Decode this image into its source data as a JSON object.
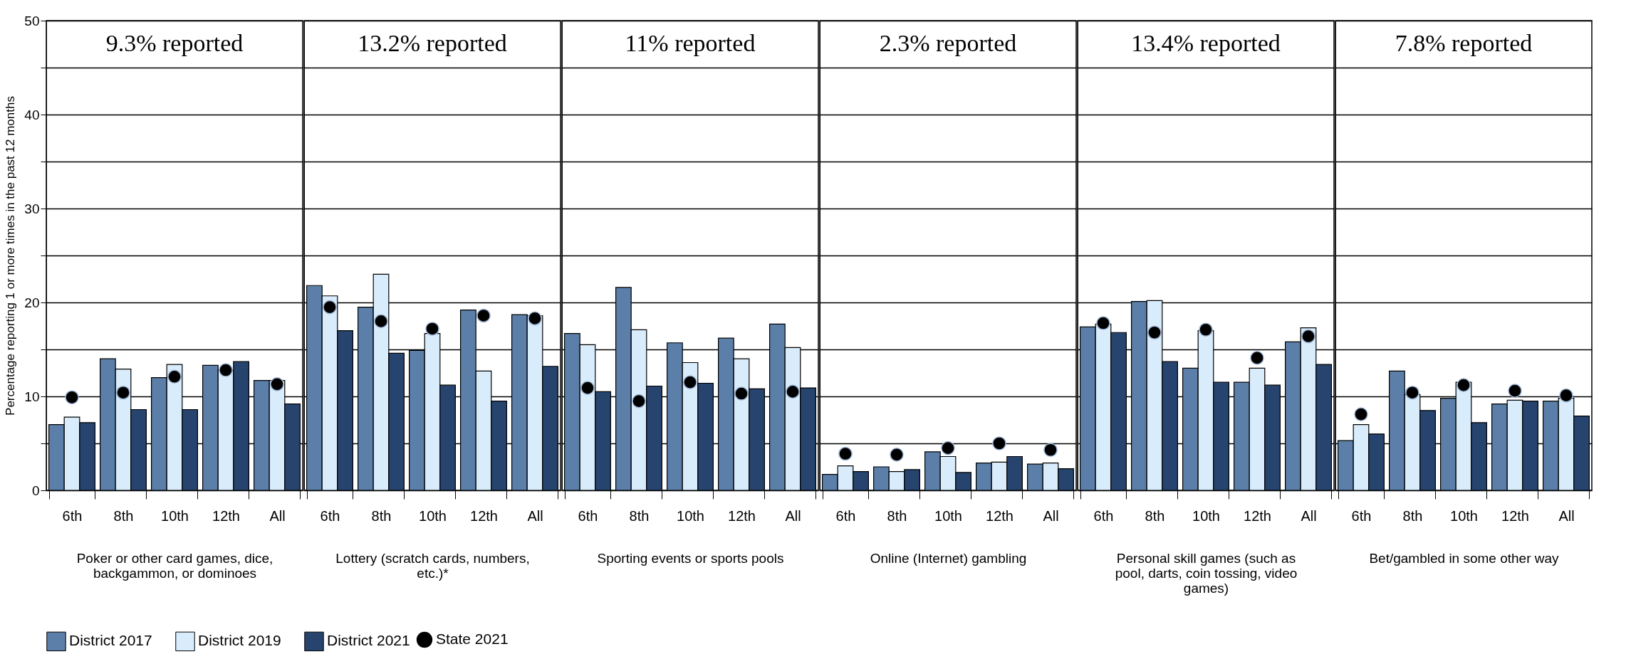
{
  "chart_data": [
    {
      "type": "bar",
      "title": "9.3% reported",
      "xlabel": "Poker or other card games, dice, backgammon, or dominoes",
      "ylabel": "Percentage reporting 1 or more times in the past 12 months",
      "categories": [
        "6th",
        "8th",
        "10th",
        "12th",
        "All"
      ],
      "series": [
        {
          "name": "District 2017",
          "color": "#5b7fa8",
          "values": [
            7.0,
            14.0,
            12.0,
            13.3,
            11.7
          ]
        },
        {
          "name": "District 2019",
          "color": "#d9ecfc",
          "values": [
            7.8,
            12.9,
            13.4,
            12.8,
            11.7
          ]
        },
        {
          "name": "District 2021",
          "color": "#26446e",
          "values": [
            7.2,
            8.6,
            8.6,
            13.7,
            9.2
          ]
        },
        {
          "name": "State 2021",
          "type": "scatter",
          "color": "#000000",
          "values": [
            9.9,
            10.4,
            12.1,
            12.8,
            11.3
          ]
        }
      ],
      "ylim": [
        0,
        50
      ],
      "yticks": [
        0,
        {
          "value": 5,
          "label": null
        },
        10,
        {
          "value": 15,
          "label": null
        },
        20,
        {
          "value": 25,
          "label": null
        },
        30,
        {
          "value": 35,
          "label": null
        },
        40,
        {
          "value": 45,
          "label": null
        },
        50
      ],
      "grid": "y",
      "legend": "bottom",
      "marker": "circle"
    },
    {
      "type": "bar",
      "title": "13.2% reported",
      "xlabel": "Lottery (scratch cards, numbers, etc.)*",
      "categories": [
        "6th",
        "8th",
        "10th",
        "12th",
        "All"
      ],
      "series": [
        {
          "name": "District 2017",
          "color": "#5b7fa8",
          "values": [
            21.8,
            19.5,
            14.9,
            19.2,
            18.7
          ]
        },
        {
          "name": "District 2019",
          "color": "#d9ecfc",
          "values": [
            20.7,
            23.0,
            16.7,
            12.7,
            18.6
          ]
        },
        {
          "name": "District 2021",
          "color": "#26446e",
          "values": [
            17.0,
            14.6,
            11.2,
            9.5,
            13.2
          ]
        },
        {
          "name": "State 2021",
          "type": "scatter",
          "color": "#000000",
          "values": [
            19.5,
            18.0,
            17.2,
            18.6,
            18.3
          ]
        }
      ],
      "ylim": [
        0,
        50
      ],
      "yticks": [
        0,
        {
          "value": 5,
          "label": null
        },
        10,
        {
          "value": 15,
          "label": null
        },
        20,
        {
          "value": 25,
          "label": null
        },
        30,
        {
          "value": 35,
          "label": null
        },
        40,
        {
          "value": 45,
          "label": null
        },
        50
      ],
      "grid": "y",
      "legend": "bottom",
      "marker": "circle",
      "tick_labels": "x"
    },
    {
      "type": "bar",
      "title": "11% reported",
      "xlabel": "Sporting events or sports pools",
      "categories": [
        "6th",
        "8th",
        "10th",
        "12th",
        "All"
      ],
      "series": [
        {
          "name": "District 2017",
          "color": "#5b7fa8",
          "values": [
            16.7,
            21.6,
            15.7,
            16.2,
            17.7
          ]
        },
        {
          "name": "District 2019",
          "color": "#d9ecfc",
          "values": [
            15.5,
            17.1,
            13.6,
            14.0,
            15.2
          ]
        },
        {
          "name": "District 2021",
          "color": "#26446e",
          "values": [
            10.5,
            11.1,
            11.4,
            10.8,
            10.9
          ]
        },
        {
          "name": "State 2021",
          "type": "scatter",
          "color": "#000000",
          "values": [
            10.9,
            9.5,
            11.5,
            10.3,
            10.5
          ]
        }
      ],
      "ylim": [
        0,
        50
      ],
      "yticks": [
        0,
        {
          "value": 5,
          "label": null
        },
        10,
        {
          "value": 15,
          "label": null
        },
        20,
        {
          "value": 25,
          "label": null
        },
        30,
        {
          "value": 35,
          "label": null
        },
        40,
        {
          "value": 45,
          "label": null
        },
        50
      ],
      "grid": "y",
      "legend": "bottom",
      "marker": "circle",
      "tick_labels": "x"
    },
    {
      "type": "bar",
      "title": "2.3% reported",
      "xlabel": "Online (Internet) gambling",
      "categories": [
        "6th",
        "8th",
        "10th",
        "12th",
        "All"
      ],
      "series": [
        {
          "name": "District 2017",
          "color": "#5b7fa8",
          "values": [
            1.7,
            2.5,
            4.1,
            2.9,
            2.8
          ]
        },
        {
          "name": "District 2019",
          "color": "#d9ecfc",
          "values": [
            2.6,
            2.0,
            3.6,
            3.0,
            2.9
          ]
        },
        {
          "name": "District 2021",
          "color": "#26446e",
          "values": [
            2.0,
            2.2,
            1.9,
            3.6,
            2.3
          ]
        },
        {
          "name": "State 2021",
          "type": "scatter",
          "color": "#000000",
          "values": [
            3.9,
            3.8,
            4.5,
            5.0,
            4.3
          ]
        }
      ],
      "ylim": [
        0,
        50
      ],
      "yticks": [
        0,
        {
          "value": 5,
          "label": null
        },
        10,
        {
          "value": 15,
          "label": null
        },
        20,
        {
          "value": 25,
          "label": null
        },
        30,
        {
          "value": 35,
          "label": null
        },
        40,
        {
          "value": 45,
          "label": null
        },
        50
      ],
      "grid": "y",
      "legend": "bottom",
      "marker": "circle",
      "tick_labels": "x"
    },
    {
      "type": "bar",
      "title": "13.4% reported",
      "xlabel": "Personal skill games (such as pool, darts, coin tossing, video games)",
      "categories": [
        "6th",
        "8th",
        "10th",
        "12th",
        "All"
      ],
      "series": [
        {
          "name": "District 2017",
          "color": "#5b7fa8",
          "values": [
            17.4,
            20.1,
            13.0,
            11.5,
            15.8
          ]
        },
        {
          "name": "District 2019",
          "color": "#d9ecfc",
          "values": [
            17.7,
            20.2,
            17.0,
            13.0,
            17.3
          ]
        },
        {
          "name": "District 2021",
          "color": "#26446e",
          "values": [
            16.8,
            13.7,
            11.5,
            11.2,
            13.4
          ]
        },
        {
          "name": "State 2021",
          "type": "scatter",
          "color": "#000000",
          "values": [
            17.8,
            16.8,
            17.1,
            14.1,
            16.4
          ]
        }
      ],
      "ylim": [
        0,
        50
      ],
      "yticks": [
        0,
        {
          "value": 5,
          "label": null
        },
        10,
        {
          "value": 15,
          "label": null
        },
        20,
        {
          "value": 25,
          "label": null
        },
        30,
        {
          "value": 35,
          "label": null
        },
        40,
        {
          "value": 45,
          "label": null
        },
        50
      ],
      "grid": "y",
      "legend": "bottom",
      "marker": "circle",
      "tick_labels": "x"
    },
    {
      "type": "bar",
      "title": "7.8% reported",
      "xlabel": "Bet/gambled in some other way",
      "categories": [
        "6th",
        "8th",
        "10th",
        "12th",
        "All"
      ],
      "series": [
        {
          "name": "District 2017",
          "color": "#5b7fa8",
          "values": [
            5.3,
            12.7,
            9.8,
            9.2,
            9.5
          ]
        },
        {
          "name": "District 2019",
          "color": "#d9ecfc",
          "values": [
            7.0,
            10.2,
            11.5,
            9.6,
            9.8
          ]
        },
        {
          "name": "District 2021",
          "color": "#26446e",
          "values": [
            6.0,
            8.5,
            7.2,
            9.5,
            7.9
          ]
        },
        {
          "name": "State 2021",
          "type": "scatter",
          "color": "#000000",
          "values": [
            8.1,
            10.4,
            11.2,
            10.6,
            10.1
          ]
        }
      ],
      "ylim": [
        0,
        50
      ],
      "yticks": [
        0,
        {
          "value": 5,
          "label": null
        },
        10,
        {
          "value": 15,
          "label": null
        },
        20,
        {
          "value": 25,
          "label": null
        },
        30,
        {
          "value": 35,
          "label": null
        },
        40,
        {
          "value": 45,
          "label": null
        },
        50
      ],
      "grid": "y",
      "legend": "bottom",
      "marker": "circle",
      "tick_labels": "x"
    }
  ]
}
